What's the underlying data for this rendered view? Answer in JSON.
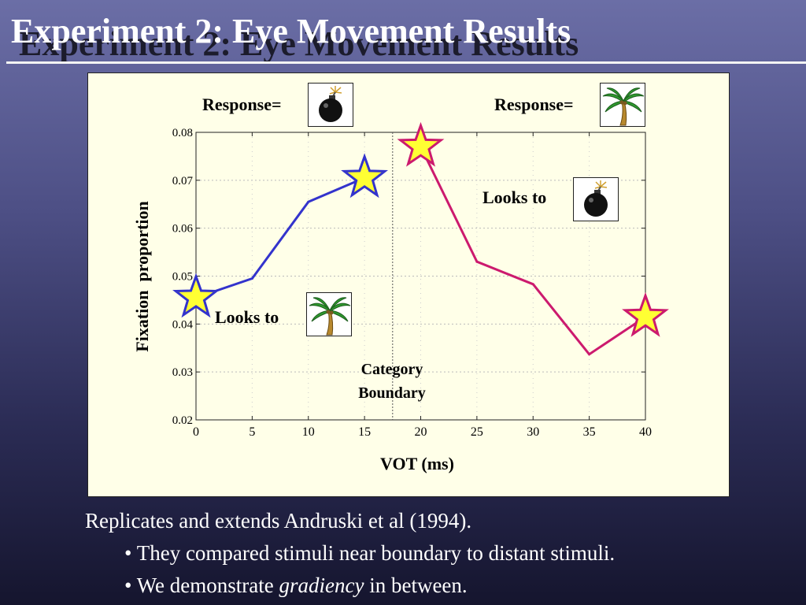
{
  "slide": {
    "title": "Experiment 2: Eye Movement Results",
    "body_line": "Replicates and extends Andruski et al (1994).",
    "bullets": [
      {
        "bullet": "•",
        "text": "They compared stimuli near boundary to distant stimuli."
      },
      {
        "bullet": "•",
        "pre": "We demonstrate ",
        "emph": "gradiency",
        "post": " in between."
      }
    ]
  },
  "chart_data": {
    "type": "line",
    "xlabel": "VOT (ms)",
    "ylabel": "Fixation  proportion",
    "xlim": [
      0,
      40
    ],
    "ylim": [
      0.02,
      0.08
    ],
    "x_ticks": [
      "0",
      "5",
      "10",
      "15",
      "20",
      "25",
      "30",
      "35",
      "40"
    ],
    "y_ticks": [
      "0.02",
      "0.03",
      "0.04",
      "0.05",
      "0.06",
      "0.07",
      "0.08"
    ],
    "category_boundary_x": 17.5,
    "boundary_label": [
      "Category",
      "Boundary"
    ],
    "series": [
      {
        "color": "#3333cc",
        "marker": "star",
        "marker_at": "endpoints",
        "points": [
          [
            0,
            0.0455
          ],
          [
            5,
            0.0495
          ],
          [
            10,
            0.0655
          ],
          [
            15,
            0.0705
          ]
        ]
      },
      {
        "color": "#cc1a6e",
        "marker": "star",
        "marker_at": "endpoints",
        "points": [
          [
            20,
            0.077
          ],
          [
            25,
            0.053
          ],
          [
            30,
            0.0483
          ],
          [
            35,
            0.0337
          ],
          [
            40,
            0.0415
          ]
        ]
      }
    ],
    "annotations": {
      "response_left": {
        "text": "Response=",
        "icon": "bomb-icon"
      },
      "response_right": {
        "text": "Response=",
        "icon": "palm-tree-icon"
      },
      "looks_to_bomb": {
        "text": "Looks to",
        "icon": "bomb-icon"
      },
      "looks_to_palm": {
        "text": "Looks to",
        "icon": "palm-tree-icon"
      }
    },
    "colors": {
      "chart_background": "#ffffe8",
      "star_fill": "#ffff33"
    }
  }
}
